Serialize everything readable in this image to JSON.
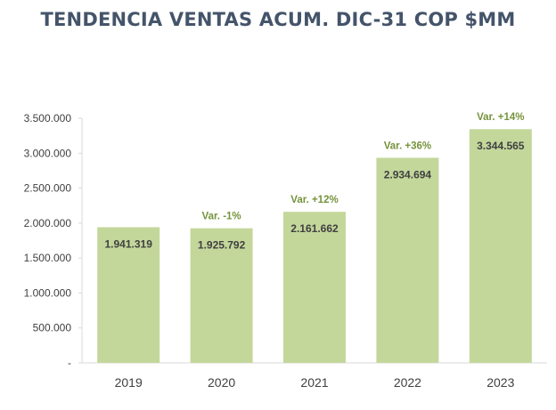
{
  "chart_data": {
    "type": "bar",
    "title": "TENDENCIA VENTAS ACUM. DIC-31 COP $MM",
    "xlabel": "",
    "ylabel": "",
    "categories": [
      "2019",
      "2020",
      "2021",
      "2022",
      "2023"
    ],
    "values": [
      1941319,
      1925792,
      2161662,
      2934694,
      3344565
    ],
    "value_labels": [
      "1.941.319",
      "1.925.792",
      "2.161.662",
      "2.934.694",
      "3.344.565"
    ],
    "variation_labels": [
      "",
      "Var. -1%",
      "Var. +12%",
      "Var. +36%",
      "Var. +14%"
    ],
    "ylim": [
      0,
      3500000
    ],
    "yticks": [
      0,
      500000,
      1000000,
      1500000,
      2000000,
      2500000,
      3000000,
      3500000
    ],
    "ytick_labels": [
      "-",
      "500.000",
      "1.000.000",
      "1.500.000",
      "2.000.000",
      "2.500.000",
      "3.000.000",
      "3.500.000"
    ],
    "grid": false,
    "legend": "none",
    "colors": {
      "bar": "#c4d79b",
      "value_label": "#404040",
      "variation_label": "#76933c",
      "title": "#44546a",
      "axis": "#d9d9d9",
      "tick_label": "#404040"
    }
  }
}
